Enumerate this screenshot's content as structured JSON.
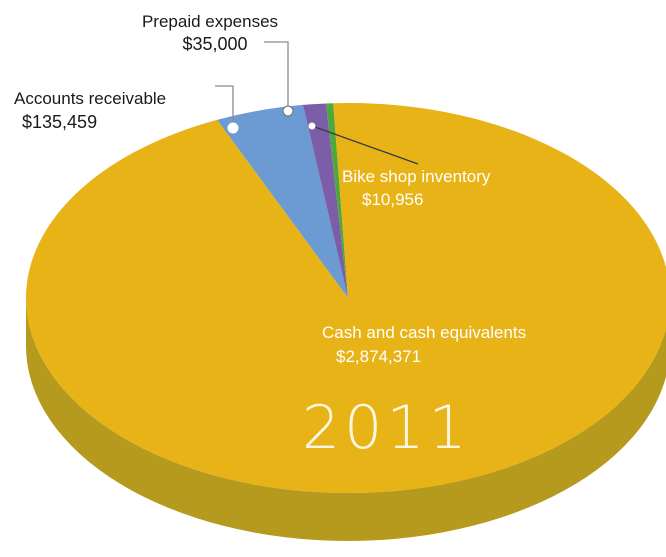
{
  "chart_data": {
    "type": "pie",
    "title": "",
    "year_label": "2011",
    "slices": [
      {
        "label": "Cash and cash equivalents",
        "value_label": "$2,874,371",
        "value": 2874371,
        "color": "#e8b316",
        "side_color": "#b59a1d"
      },
      {
        "label": "Accounts receivable",
        "value_label": "$135,459",
        "value": 135459,
        "color": "#6b9bd2",
        "side_color": "#4f79a8"
      },
      {
        "label": "Prepaid expenses",
        "value_label": "$35,000",
        "value": 35000,
        "color": "#7b5ea7",
        "side_color": "#5d4680"
      },
      {
        "label": "Bike shop inventory",
        "value_label": "$10,956",
        "value": 10956,
        "color": "#4fa83d",
        "side_color": "#3a7d2d"
      }
    ]
  }
}
